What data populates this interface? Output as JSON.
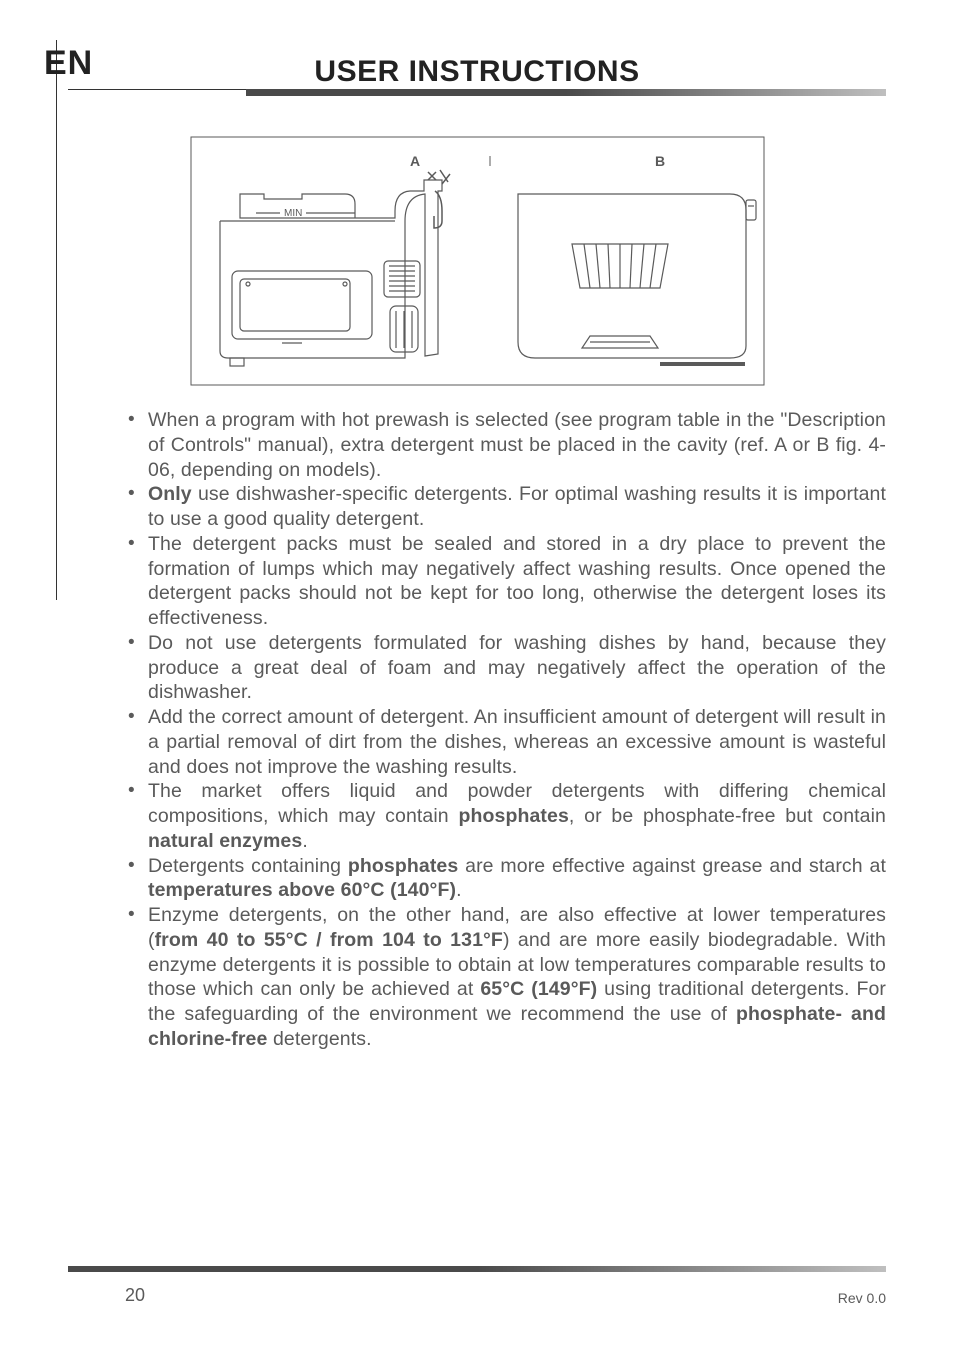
{
  "lang_code": "EN",
  "title": "USER INSTRUCTIONS",
  "figure": {
    "label_a": "A",
    "label_b": "B",
    "min_label": "MIN",
    "svg_bg": "#ffffff",
    "stroke": "#5a5a5a",
    "label_color": "#5a5a5a",
    "stroke_w_outer": 1.5,
    "stroke_w_inner": 1
  },
  "body": {
    "font_color": "#5a5a5a",
    "font_size": 19.5,
    "line_height": 1.27
  },
  "bullets": [
    {
      "html": "When a program with hot prewash is selected (see program table in the \"Description of Controls\" manual), extra detergent must be placed in the cavity (ref. A or B fig. 4-06, depending on models)."
    },
    {
      "html": "<b>Only</b> use dishwasher-specific detergents. For optimal washing results it is important to use a good quality detergent."
    },
    {
      "html": "The detergent packs must be sealed and stored in a dry place to prevent the formation of lumps which may negatively affect washing results. Once opened the detergent packs should not be kept for too long, otherwise the detergent loses its effectiveness."
    },
    {
      "html": "Do not use detergents formulated for washing dishes by hand, because they produce a great deal of foam and may negatively affect the operation of the dishwasher."
    },
    {
      "html": "Add the correct amount of detergent. An insufficient amount of detergent will result in a partial removal of dirt from the dishes, whereas an excessive amount is wasteful and does not improve the washing results."
    },
    {
      "html": "The market offers liquid and powder detergents with differing chemical compositions, which may contain <b>phosphates</b>, or be phosphate-free but contain <b>natural enzymes</b>."
    },
    {
      "html": "Detergents containing <b>phosphates</b> are more effective against grease and starch at <b>temperatures above 60°C (140°F)</b>."
    },
    {
      "html": "Enzyme detergents, on the other hand, are also effective at lower temperatures (<b>from 40 to 55°C / from 104 to 131°F</b>) and are more easily biodegradable. With enzyme detergents it is possible to obtain at low temperatures comparable results to those which can only be achieved at <b>65°C (149°F)</b> using traditional detergents. For the safeguarding of the environment we recommend the use of <b>phosphate- and chlorine-free</b> detergents."
    }
  ],
  "footer": {
    "page_num": "20",
    "rev": "Rev 0.0"
  },
  "footer_bar": {
    "color_left": "#4a4a4a",
    "color_right": "#bfbfbf"
  }
}
